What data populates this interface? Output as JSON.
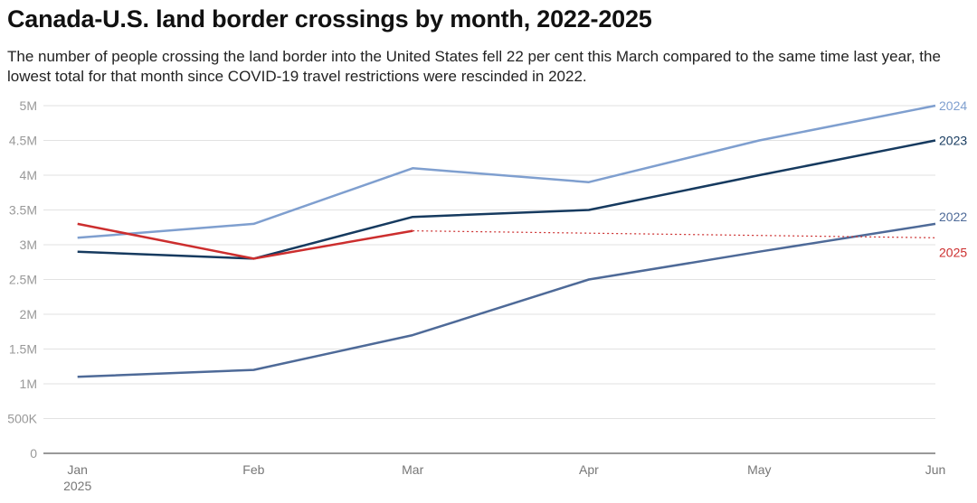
{
  "title": "Canada-U.S. land border crossings by month, 2022-2025",
  "subtitle": "The number of people crossing the land border into the United States fell 22 per cent this March compared to the same time last year, the lowest total for that month since COVID-19 travel restrictions were rescinded in 2022.",
  "chart_data": {
    "type": "line",
    "x_tick_labels": [
      "Jan",
      "Feb",
      "Mar",
      "Apr",
      "May",
      "Jun"
    ],
    "x_year_label": "2025",
    "y_tick_labels": [
      "0",
      "500K",
      "1M",
      "1.5M",
      "2M",
      "2.5M",
      "3M",
      "3.5M",
      "4M",
      "4.5M",
      "5M"
    ],
    "y_tick_values": [
      0,
      500000,
      1000000,
      1500000,
      2000000,
      2500000,
      3000000,
      3500000,
      4000000,
      4500000,
      5000000
    ],
    "ylim": [
      0,
      5000000
    ],
    "grid": true,
    "series": [
      {
        "name": "2024",
        "color": "#7f9fcf",
        "points": [
          [
            "2025-01-01",
            3100000
          ],
          [
            "2025-02-01",
            3300000
          ],
          [
            "2025-03-01",
            4100000
          ],
          [
            "2025-04-01",
            3900000
          ],
          [
            "2025-05-01",
            4500000
          ],
          [
            "2025-06-01",
            5000000
          ]
        ]
      },
      {
        "name": "2023",
        "color": "#163a5f",
        "points": [
          [
            "2025-01-01",
            2900000
          ],
          [
            "2025-02-01",
            2800000
          ],
          [
            "2025-03-01",
            3400000
          ],
          [
            "2025-04-01",
            3500000
          ],
          [
            "2025-05-01",
            4000000
          ],
          [
            "2025-06-01",
            4500000
          ]
        ]
      },
      {
        "name": "2022",
        "color": "#4e6a98",
        "points": [
          [
            "2025-01-01",
            1100000
          ],
          [
            "2025-02-01",
            1200000
          ],
          [
            "2025-03-01",
            1700000
          ],
          [
            "2025-04-01",
            2500000
          ],
          [
            "2025-05-01",
            2900000
          ],
          [
            "2025-06-01",
            3300000
          ]
        ]
      },
      {
        "name": "2025",
        "color": "#cc2e2e",
        "points": [
          [
            "2025-01-01",
            3300000
          ],
          [
            "2025-02-01",
            2800000
          ],
          [
            "2025-03-01",
            3200000
          ]
        ],
        "projection": [
          [
            "2025-03-01",
            3200000
          ],
          [
            "2025-06-01",
            3100000
          ]
        ]
      }
    ]
  }
}
